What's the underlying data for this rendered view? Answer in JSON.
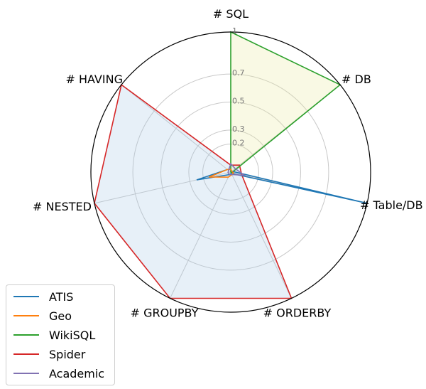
{
  "chart_data": {
    "type": "radar",
    "axes": [
      "# SQL",
      "# DB",
      "# Table/DB",
      "# ORDERBY",
      "# GROUPBY",
      "# NESTED",
      "# HAVING"
    ],
    "radial_ticks": [
      "0.2",
      "0.3",
      "0.5",
      "0.7",
      "1"
    ],
    "radial_tick_values": [
      0.2,
      0.3,
      0.5,
      0.7,
      1.0
    ],
    "rlim": [
      0,
      1
    ],
    "grid": true,
    "legend_position": "lower-left",
    "series": [
      {
        "name": "ATIS",
        "color": "#1f77b4",
        "fill": false,
        "values": [
          0.02,
          0.01,
          1.0,
          0.01,
          0.02,
          0.25,
          0.03
        ]
      },
      {
        "name": "Geo",
        "color": "#ff7f0e",
        "fill": false,
        "values": [
          0.02,
          0.01,
          0.02,
          0.02,
          0.04,
          0.16,
          0.03
        ]
      },
      {
        "name": "WikiSQL",
        "color": "#2ca02c",
        "fill": true,
        "fill_color": "#e8eb9e",
        "values": [
          1.0,
          1.0,
          0.01,
          0.0,
          0.0,
          0.0,
          0.0
        ]
      },
      {
        "name": "Spider",
        "color": "#d62728",
        "fill": true,
        "fill_color": "#a9c9e6",
        "values": [
          0.05,
          0.08,
          0.08,
          1.0,
          1.0,
          1.0,
          1.0
        ]
      },
      {
        "name": "Academic",
        "color": "#8172b2",
        "fill": false,
        "values": [
          0.06,
          0.04,
          0.1,
          0.02,
          0.02,
          0.02,
          0.02
        ]
      }
    ]
  }
}
